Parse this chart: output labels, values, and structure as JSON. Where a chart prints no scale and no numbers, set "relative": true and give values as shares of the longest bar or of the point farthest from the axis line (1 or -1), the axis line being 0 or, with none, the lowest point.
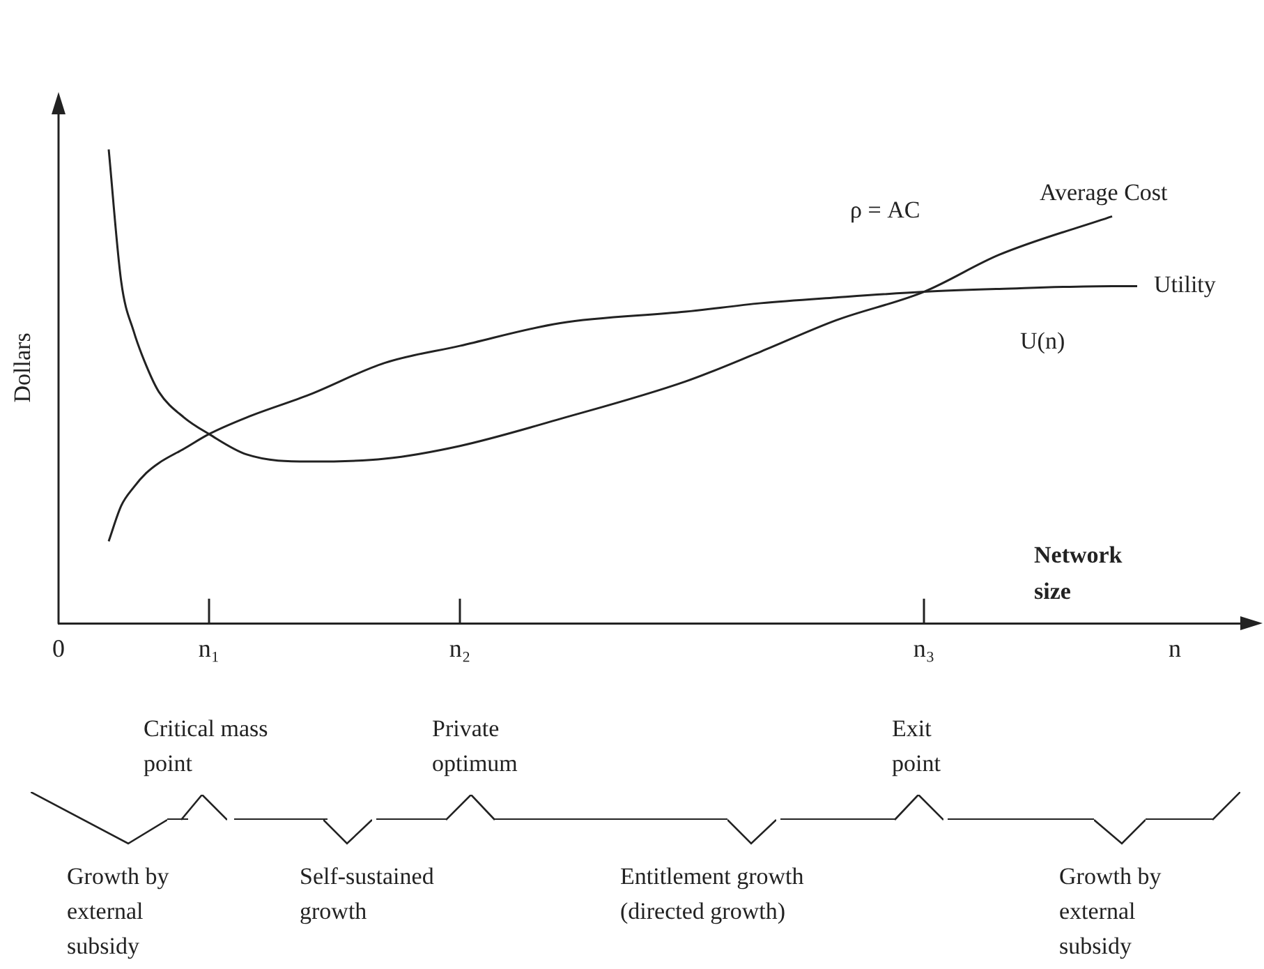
{
  "chart_data": {
    "type": "line",
    "relative": true,
    "xlabel": "Network size",
    "ylabel": "Dollars",
    "categories": [
      "0",
      null,
      null,
      null,
      null,
      null,
      null,
      null,
      null,
      null,
      null,
      null,
      "n₁",
      null,
      null,
      null,
      null,
      null,
      null,
      null,
      null,
      null,
      null,
      null,
      null,
      null,
      null,
      null,
      null,
      null,
      null,
      null,
      "n₂",
      null,
      null,
      null,
      null,
      null,
      null,
      null,
      null,
      null,
      null,
      null,
      null,
      null,
      null,
      null,
      null,
      null,
      null,
      null,
      null,
      null,
      null,
      null,
      null,
      null,
      null,
      null,
      null,
      null,
      null,
      null,
      null,
      null,
      null,
      null,
      null,
      "n₃",
      null,
      null,
      null,
      null,
      null,
      null,
      null,
      null,
      null,
      null,
      null,
      null,
      null,
      null,
      null,
      null,
      null,
      null,
      null,
      "n",
      null,
      null,
      null,
      null,
      null,
      null
    ],
    "series": [
      {
        "name": "Average Cost",
        "color": "#222222",
        "values": [
          null,
          null,
          null,
          null,
          1.0,
          0.721,
          0.616,
          0.544,
          0.489,
          null,
          0.435,
          null,
          0.4,
          null,
          null,
          0.357,
          null,
          null,
          null,
          null,
          0.342,
          null,
          null,
          null,
          null,
          null,
          0.348,
          null,
          null,
          null,
          null,
          null,
          0.375,
          null,
          null,
          null,
          null,
          null,
          null,
          null,
          0.432,
          null,
          null,
          null,
          null,
          null,
          null,
          null,
          null,
          null,
          0.511,
          null,
          null,
          null,
          null,
          null,
          0.574,
          null,
          null,
          null,
          null,
          null,
          0.64,
          null,
          null,
          null,
          null,
          null,
          null,
          0.7,
          null,
          null,
          null,
          null,
          null,
          0.778,
          null,
          null,
          null,
          null,
          null,
          null,
          null,
          null,
          0.859,
          null,
          null,
          null,
          null,
          null,
          null,
          null,
          null,
          null,
          null,
          null
        ]
      },
      {
        "name": "Utility",
        "color": "#222222",
        "values": [
          null,
          null,
          null,
          null,
          0.174,
          0.249,
          0.288,
          0.318,
          0.339,
          null,
          0.369,
          null,
          0.4,
          null,
          null,
          0.435,
          null,
          null,
          null,
          null,
          0.483,
          null,
          null,
          null,
          null,
          null,
          0.55,
          null,
          null,
          null,
          null,
          null,
          0.586,
          null,
          null,
          null,
          null,
          null,
          null,
          null,
          0.634,
          null,
          null,
          null,
          null,
          null,
          null,
          null,
          null,
          null,
          0.658,
          null,
          null,
          null,
          null,
          null,
          0.676,
          null,
          null,
          null,
          null,
          null,
          0.688,
          null,
          null,
          null,
          null,
          null,
          null,
          0.7,
          null,
          null,
          null,
          null,
          null,
          0.706,
          null,
          null,
          null,
          null,
          null,
          null,
          null,
          null,
          0.712,
          null,
          0.712,
          null,
          null,
          null,
          null,
          null,
          null,
          null,
          null,
          null
        ]
      }
    ],
    "annotations": [
      "ρ = AC",
      "U(n)",
      "Critical mass point",
      "Private optimum",
      "Exit point",
      "Growth by external subsidy",
      "Self-sustained growth",
      "Entitlement growth (directed growth)",
      "Growth by external subsidy"
    ]
  }
}
